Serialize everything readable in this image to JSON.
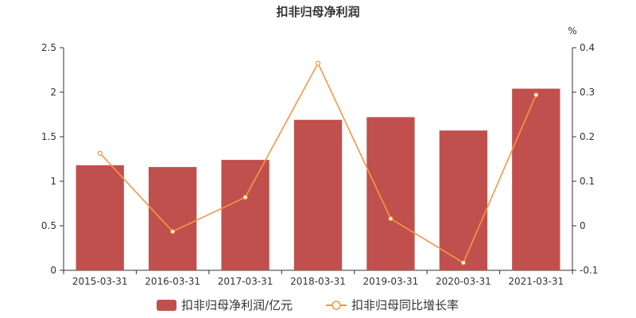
{
  "chart_data": {
    "type": "bar",
    "title": "扣非归母净利润",
    "categories": [
      "2015-03-31",
      "2016-03-31",
      "2017-03-31",
      "2018-03-31",
      "2019-03-31",
      "2020-03-31",
      "2021-03-31"
    ],
    "series": [
      {
        "name": "扣非归母净利润/亿元",
        "type": "bar",
        "axis": "left",
        "color": "#c0504d",
        "values": [
          1.18,
          1.16,
          1.24,
          1.69,
          1.72,
          1.57,
          2.04
        ]
      },
      {
        "name": "扣非归母同比增长率",
        "type": "line",
        "axis": "right",
        "color": "#f79646",
        "values": [
          0.163,
          -0.013,
          0.064,
          0.365,
          0.016,
          -0.083,
          0.294
        ]
      }
    ],
    "y_left": {
      "ylim": [
        0,
        2.5
      ],
      "ticks": [
        "0",
        "0.5",
        "1",
        "1.5",
        "2",
        "2.5"
      ],
      "tick_values": [
        0,
        0.5,
        1,
        1.5,
        2,
        2.5
      ]
    },
    "y_right": {
      "label": "%",
      "ylim": [
        -0.1,
        0.4
      ],
      "ticks": [
        "-0.1",
        "0",
        "0.1",
        "0.2",
        "0.3",
        "0.4"
      ],
      "tick_values": [
        -0.1,
        0,
        0.1,
        0.2,
        0.3,
        0.4
      ]
    },
    "legend_position": "bottom-center",
    "grid": false
  }
}
